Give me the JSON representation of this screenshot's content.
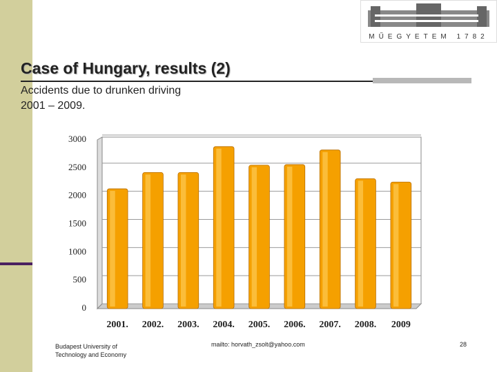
{
  "slide": {
    "title": "Case of Hungary, results (2)",
    "subtitle_line1": "Accidents due to drunken driving",
    "subtitle_line2": "2001 – 2009.",
    "logo_text": "MŰEGYETEM",
    "logo_year": "1782",
    "footer_left_line1": "Budapest University of",
    "footer_left_line2": "Technology and Economy",
    "footer_center": "mailto: horvath_zsolt@yahoo.com",
    "page_number": "28"
  },
  "chart_data": {
    "type": "bar",
    "categories": [
      "2001.",
      "2002.",
      "2003.",
      "2004.",
      "2005.",
      "2006.",
      "2007.",
      "2008.",
      "2009"
    ],
    "values": [
      2130,
      2420,
      2420,
      2880,
      2550,
      2560,
      2820,
      2310,
      2250
    ],
    "color": "#f5a000",
    "ylim": [
      0,
      3000
    ],
    "yticks": [
      0,
      500,
      1000,
      1500,
      2000,
      2500,
      3000
    ],
    "grid": true
  }
}
